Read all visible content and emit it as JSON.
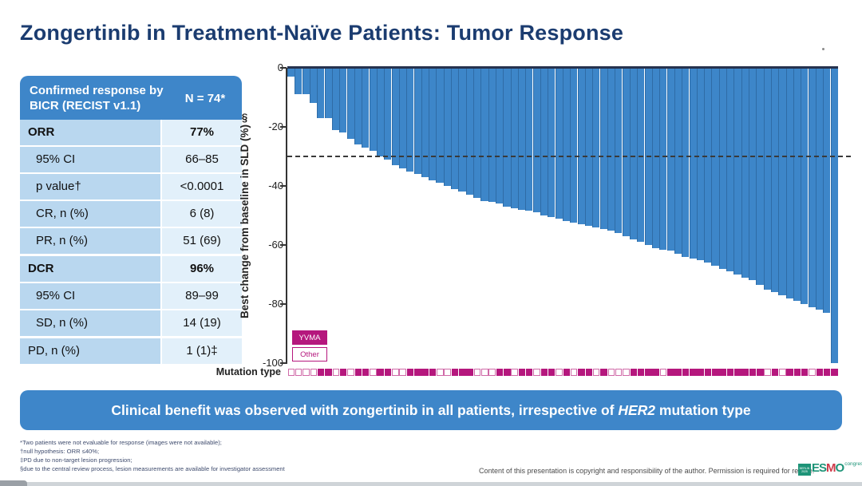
{
  "title": "Zongertinib in Treatment-Naïve Patients: Tumor Response",
  "table": {
    "header_label": "Confirmed response by BICR (RECIST v1.1)",
    "header_value": "N = 74*",
    "rows": [
      {
        "label": "ORR",
        "value": "77%",
        "bold": true,
        "indent": false,
        "section_start": false
      },
      {
        "label": "95% CI",
        "value": "66–85",
        "bold": false,
        "indent": true,
        "section_start": false
      },
      {
        "label": "p value†",
        "value": "<0.0001",
        "bold": false,
        "indent": true,
        "section_start": false
      },
      {
        "label": "CR, n (%)",
        "value": "6 (8)",
        "bold": false,
        "indent": true,
        "section_start": false
      },
      {
        "label": "PR, n (%)",
        "value": "51 (69)",
        "bold": false,
        "indent": true,
        "section_start": false
      },
      {
        "label": "DCR",
        "value": "96%",
        "bold": true,
        "indent": false,
        "section_start": true
      },
      {
        "label": "95% CI",
        "value": "89–99",
        "bold": false,
        "indent": true,
        "section_start": false
      },
      {
        "label": "SD, n (%)",
        "value": "14 (19)",
        "bold": false,
        "indent": true,
        "section_start": false
      },
      {
        "label": "PD, n (%)",
        "value": "1 (1)‡",
        "bold": false,
        "indent": false,
        "section_start": true
      }
    ]
  },
  "chart_data": {
    "type": "bar",
    "subtype": "waterfall",
    "title": "",
    "xlabel": "Mutation type",
    "ylabel": "Best change from baseline in SLD (%)§",
    "ylim": [
      -100,
      0
    ],
    "yticks": [
      0,
      -20,
      -40,
      -60,
      -80,
      -100
    ],
    "reference_line": -30,
    "n_patients": 74,
    "values": [
      -3,
      -9,
      -9,
      -12,
      -17,
      -17,
      -21,
      -22,
      -24,
      -26,
      -27,
      -28,
      -30,
      -31,
      -33,
      -34,
      -35,
      -36,
      -37,
      -38,
      -39,
      -40,
      -41,
      -42,
      -43,
      -44,
      -45,
      -45.5,
      -46,
      -47,
      -47.5,
      -48,
      -48.5,
      -49,
      -50,
      -50.5,
      -51,
      -52,
      -52.5,
      -53,
      -53.5,
      -54,
      -54.5,
      -55,
      -56,
      -57,
      -58,
      -59,
      -60,
      -61,
      -61.5,
      -62,
      -63,
      -64,
      -64.5,
      -65,
      -66,
      -67,
      -68,
      -69,
      -70,
      -71,
      -72,
      -73.5,
      -75,
      -76,
      -77,
      -78,
      -79,
      -80,
      -81,
      -82,
      -83,
      -100
    ],
    "mutation_pattern": "00001101011011001111001110001101101101011010001111011111111111110101110111",
    "legend": [
      {
        "label": "YVMA",
        "filled": true
      },
      {
        "label": "Other",
        "filled": false
      }
    ],
    "legend_position": "lower-left",
    "grid": false
  },
  "mutation_axis_label": "Mutation type",
  "legend_yvma": "YVMA",
  "legend_other": "Other",
  "banner": {
    "text_before": "Clinical benefit was observed with zongertinib in all patients, irrespective of ",
    "text_italic": "HER2",
    "text_after": " mutation type"
  },
  "footnotes": [
    "*Two patients were not evaluable for response (images were not available);",
    "†null hypothesis: ORR ≤40%;",
    "‡PD due to non-target lesion progression;",
    "§due to the central review process, lesion measurements are available for investigator assessment"
  ],
  "copyright": "Content of this presentation is copyright and responsibility of the author. Permission is required for re-use.",
  "logo": {
    "badge": "BERLIN 2025",
    "word_part1": "ES",
    "word_part2": "M",
    "word_part3": "O",
    "congress": "congress"
  },
  "colors": {
    "accent_blue": "#3e86c9",
    "bar_blue": "#3d86c9",
    "magenta": "#b5177d",
    "title_navy": "#1b3c70",
    "table_label_bg": "#b9d7ef",
    "table_value_bg": "#e2f0fa",
    "esmo_green": "#1e9478",
    "esmo_red": "#cf3a4a"
  }
}
